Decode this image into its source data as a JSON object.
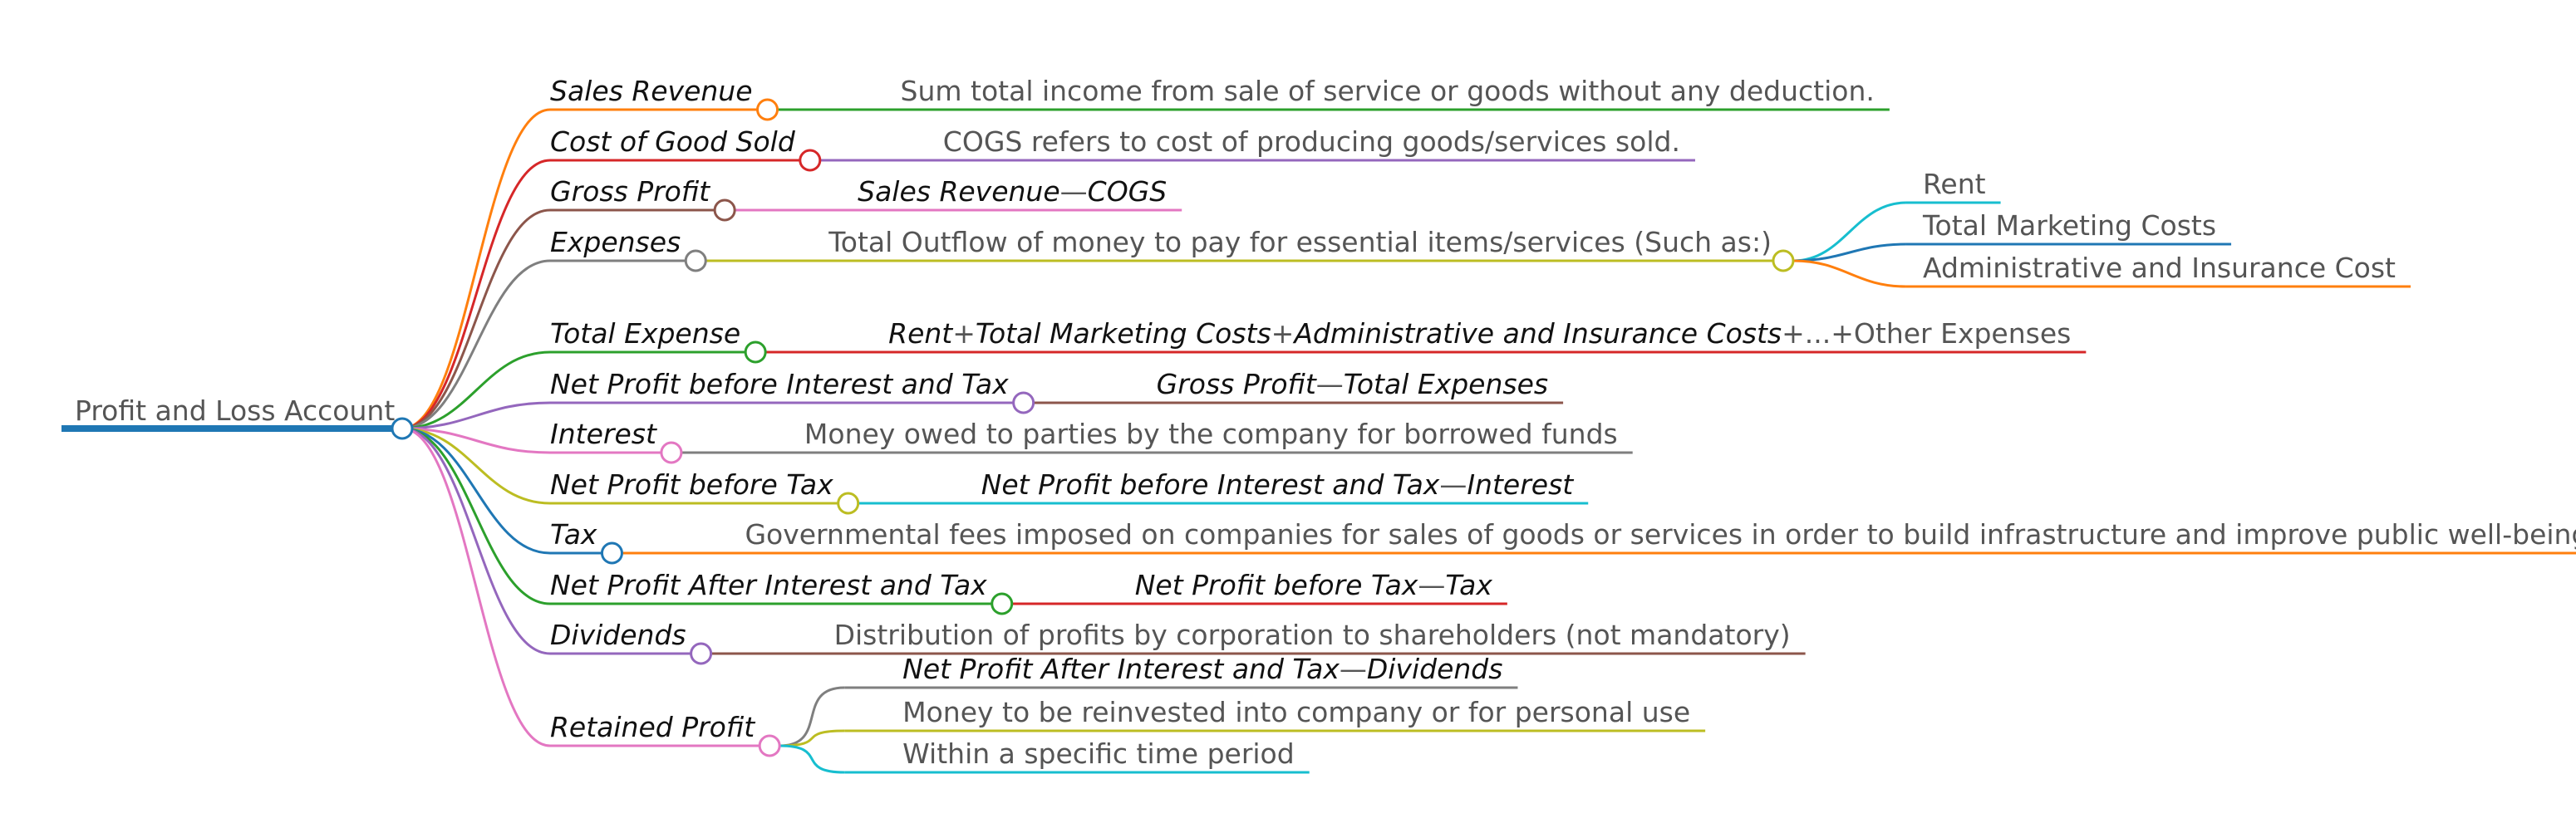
{
  "root": {
    "label": "Profit and Loss Account",
    "color": "#1f77b4"
  },
  "branches": [
    {
      "id": "sales-revenue",
      "label": "Sales Revenue",
      "color": "#ff7f0e",
      "children": [
        {
          "type": "text",
          "text": "Sum total income from sale of service or goods without any deduction.",
          "color": "#2ca02c"
        }
      ]
    },
    {
      "id": "cost-of-good-sold",
      "label": "Cost of Good Sold",
      "color": "#d62728",
      "children": [
        {
          "type": "text",
          "text": "COGS refers to cost of producing goods/services sold.",
          "color": "#9467bd"
        }
      ]
    },
    {
      "id": "gross-profit",
      "label": "Gross Profit",
      "color": "#8c564b",
      "children": [
        {
          "type": "formula",
          "parts": [
            "Sales Revenue",
            "—",
            "COGS"
          ],
          "color": "#e377c2"
        }
      ]
    },
    {
      "id": "expenses",
      "label": "Expenses",
      "color": "#7f7f7f",
      "children": [
        {
          "type": "text",
          "text": "Total Outflow of money to pay for essential items/services (Such as:)",
          "color": "#bcbd22",
          "subitems": [
            {
              "text": "Rent",
              "color": "#17becf"
            },
            {
              "text": "Total Marketing Costs",
              "color": "#1f77b4"
            },
            {
              "text": "Administrative and Insurance Cost",
              "color": "#ff7f0e"
            }
          ]
        }
      ]
    },
    {
      "id": "total-expense",
      "label": "Total Expense",
      "color": "#2ca02c",
      "children": [
        {
          "type": "formula",
          "parts": [
            "Rent",
            "+",
            "Total Marketing Costs",
            "+",
            "Administrative and Insurance Costs",
            "+...+Other Expenses"
          ],
          "color": "#d62728"
        }
      ]
    },
    {
      "id": "net-profit-before-interest-and-tax",
      "label": "Net Profit before Interest and Tax",
      "color": "#9467bd",
      "children": [
        {
          "type": "formula",
          "parts": [
            "Gross Profit",
            "—",
            "Total Expenses"
          ],
          "color": "#8c564b"
        }
      ]
    },
    {
      "id": "interest",
      "label": "Interest",
      "color": "#e377c2",
      "children": [
        {
          "type": "text",
          "text": "Money owed to parties by the company for borrowed funds",
          "color": "#7f7f7f"
        }
      ]
    },
    {
      "id": "net-profit-before-tax",
      "label": "Net Profit before Tax",
      "color": "#bcbd22",
      "children": [
        {
          "type": "formula",
          "parts": [
            "Net Profit before Interest and Tax",
            "—",
            "Interest"
          ],
          "color": "#17becf"
        }
      ]
    },
    {
      "id": "tax",
      "label": "Tax",
      "color": "#1f77b4",
      "children": [
        {
          "type": "text",
          "text": "Governmental fees imposed on companies for sales of goods or services in order to build infrastructure and improve public well-being.",
          "color": "#ff7f0e"
        }
      ]
    },
    {
      "id": "net-profit-after-interest-and-tax",
      "label": "Net Profit After Interest and Tax",
      "color": "#2ca02c",
      "children": [
        {
          "type": "formula",
          "parts": [
            "Net Profit before Tax",
            "—",
            "Tax"
          ],
          "color": "#d62728"
        }
      ]
    },
    {
      "id": "dividends",
      "label": "Dividends",
      "color": "#9467bd",
      "children": [
        {
          "type": "text",
          "text": "Distribution of profits by corporation to shareholders (not mandatory)",
          "color": "#8c564b"
        }
      ]
    },
    {
      "id": "retained-profit",
      "label": "Retained Profit",
      "color": "#e377c2",
      "children": [
        {
          "type": "formula",
          "parts": [
            "Net Profit After Interest and Tax",
            "—",
            "Dividends"
          ],
          "color": "#7f7f7f"
        },
        {
          "type": "text",
          "text": "Money to be reinvested into company or for personal use",
          "color": "#bcbd22"
        },
        {
          "type": "text",
          "text": "Within a specific time period",
          "color": "#17becf"
        }
      ]
    }
  ]
}
